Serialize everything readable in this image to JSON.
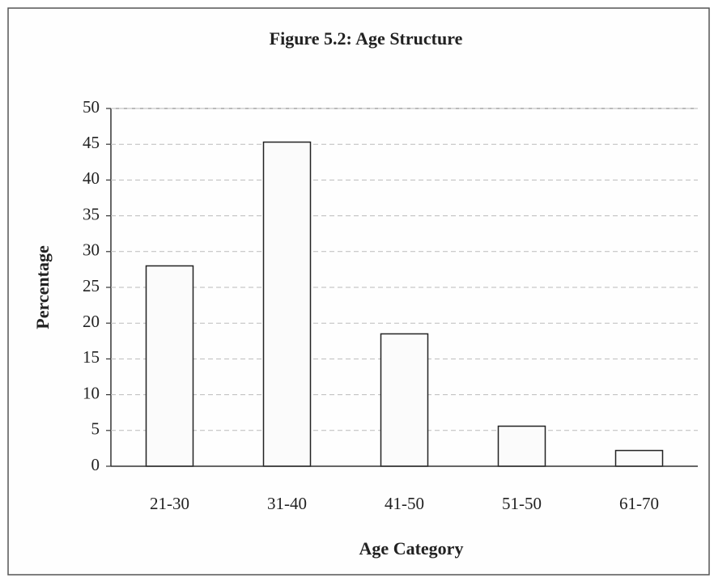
{
  "chart_data": {
    "type": "bar",
    "title": "Figure 5.2: Age Structure",
    "x_label": "Age Category",
    "y_label": "Percentage",
    "categories": [
      "21-30",
      "31-40",
      "41-50",
      "51-50",
      "61-70"
    ],
    "values": [
      28,
      45.3,
      18.5,
      5.6,
      2.2
    ],
    "color": "#fbfbfb",
    "ylim": [
      0,
      50
    ],
    "yticks": [
      0,
      5,
      10,
      15,
      20,
      25,
      30,
      35,
      40,
      45,
      50
    ],
    "grid": true
  }
}
